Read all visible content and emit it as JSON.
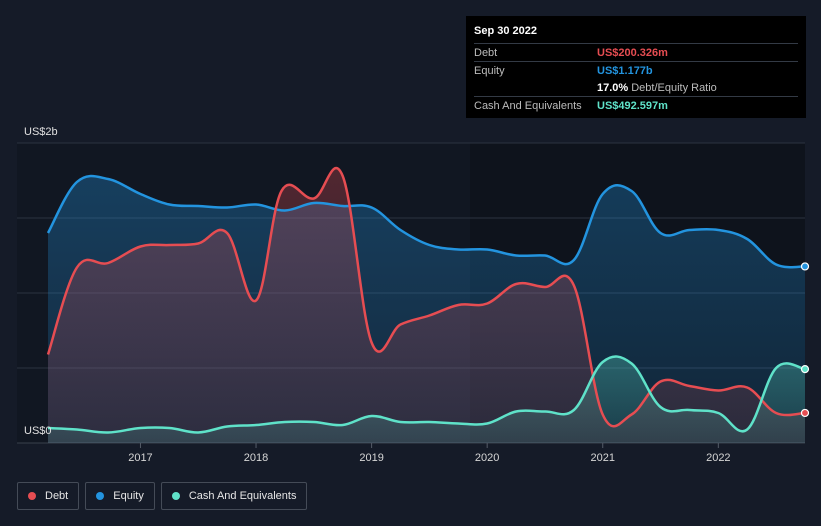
{
  "chart_data": {
    "type": "area",
    "x_range": [
      2016.2,
      2022.75
    ],
    "ylim": [
      0,
      2.0
    ],
    "y_tick_labels": [
      {
        "value": 2.0,
        "label": "US$2b"
      },
      {
        "value": 0,
        "label": "US$0"
      }
    ],
    "x_ticks": [
      {
        "value": 2017,
        "label": "2017"
      },
      {
        "value": 2018,
        "label": "2018"
      },
      {
        "value": 2019,
        "label": "2019"
      },
      {
        "value": 2020,
        "label": "2020"
      },
      {
        "value": 2021,
        "label": "2021"
      },
      {
        "value": 2022,
        "label": "2022"
      }
    ],
    "gridlines": [
      0.5,
      1.0,
      1.5,
      2.0
    ],
    "series": [
      {
        "name": "Equity",
        "color": "#2394df",
        "points": [
          [
            2016.2,
            1.4
          ],
          [
            2016.45,
            1.74
          ],
          [
            2016.72,
            1.76
          ],
          [
            2017.0,
            1.66
          ],
          [
            2017.25,
            1.59
          ],
          [
            2017.5,
            1.58
          ],
          [
            2017.75,
            1.57
          ],
          [
            2018.0,
            1.59
          ],
          [
            2018.25,
            1.55
          ],
          [
            2018.5,
            1.6
          ],
          [
            2018.75,
            1.58
          ],
          [
            2019.0,
            1.57
          ],
          [
            2019.25,
            1.42
          ],
          [
            2019.5,
            1.32
          ],
          [
            2019.75,
            1.29
          ],
          [
            2020.0,
            1.29
          ],
          [
            2020.25,
            1.25
          ],
          [
            2020.5,
            1.25
          ],
          [
            2020.75,
            1.22
          ],
          [
            2021.0,
            1.66
          ],
          [
            2021.25,
            1.68
          ],
          [
            2021.5,
            1.4
          ],
          [
            2021.75,
            1.42
          ],
          [
            2022.0,
            1.42
          ],
          [
            2022.25,
            1.36
          ],
          [
            2022.5,
            1.19
          ],
          [
            2022.75,
            1.177
          ]
        ]
      },
      {
        "name": "Debt",
        "color": "#e64d52",
        "points": [
          [
            2016.2,
            0.59
          ],
          [
            2016.45,
            1.17
          ],
          [
            2016.72,
            1.2
          ],
          [
            2017.0,
            1.31
          ],
          [
            2017.25,
            1.32
          ],
          [
            2017.5,
            1.33
          ],
          [
            2017.75,
            1.4
          ],
          [
            2018.0,
            0.95
          ],
          [
            2018.22,
            1.68
          ],
          [
            2018.5,
            1.63
          ],
          [
            2018.75,
            1.78
          ],
          [
            2019.0,
            0.67
          ],
          [
            2019.25,
            0.79
          ],
          [
            2019.5,
            0.85
          ],
          [
            2019.75,
            0.92
          ],
          [
            2020.0,
            0.93
          ],
          [
            2020.25,
            1.06
          ],
          [
            2020.5,
            1.04
          ],
          [
            2020.75,
            1.05
          ],
          [
            2021.0,
            0.19
          ],
          [
            2021.25,
            0.19
          ],
          [
            2021.5,
            0.41
          ],
          [
            2021.75,
            0.38
          ],
          [
            2022.0,
            0.35
          ],
          [
            2022.25,
            0.37
          ],
          [
            2022.5,
            0.2
          ],
          [
            2022.75,
            0.200326
          ]
        ]
      },
      {
        "name": "Cash And Equivalents",
        "color": "#5fe2c9",
        "points": [
          [
            2016.2,
            0.1
          ],
          [
            2016.45,
            0.09
          ],
          [
            2016.72,
            0.07
          ],
          [
            2017.0,
            0.1
          ],
          [
            2017.25,
            0.1
          ],
          [
            2017.5,
            0.07
          ],
          [
            2017.75,
            0.11
          ],
          [
            2018.0,
            0.12
          ],
          [
            2018.25,
            0.14
          ],
          [
            2018.5,
            0.14
          ],
          [
            2018.75,
            0.12
          ],
          [
            2019.0,
            0.18
          ],
          [
            2019.25,
            0.14
          ],
          [
            2019.5,
            0.14
          ],
          [
            2019.75,
            0.13
          ],
          [
            2020.0,
            0.13
          ],
          [
            2020.25,
            0.21
          ],
          [
            2020.5,
            0.21
          ],
          [
            2020.75,
            0.22
          ],
          [
            2021.0,
            0.54
          ],
          [
            2021.25,
            0.53
          ],
          [
            2021.5,
            0.24
          ],
          [
            2021.75,
            0.22
          ],
          [
            2022.0,
            0.2
          ],
          [
            2022.25,
            0.09
          ],
          [
            2022.5,
            0.5
          ],
          [
            2022.75,
            0.492597
          ]
        ]
      }
    ]
  },
  "tooltip": {
    "date": "Sep 30 2022",
    "debt_label": "Debt",
    "debt_value": "US$200.326m",
    "equity_label": "Equity",
    "equity_value": "US$1.177b",
    "ratio_value": "17.0%",
    "ratio_label": "Debt/Equity Ratio",
    "cash_label": "Cash And Equivalents",
    "cash_value": "US$492.597m",
    "colors": {
      "debt": "#e64d52",
      "equity": "#2394df",
      "cash": "#5fe2c9"
    }
  },
  "legend": {
    "items": [
      {
        "label": "Debt",
        "color": "#e64d52"
      },
      {
        "label": "Equity",
        "color": "#2394df"
      },
      {
        "label": "Cash And Equivalents",
        "color": "#5fe2c9"
      }
    ]
  }
}
